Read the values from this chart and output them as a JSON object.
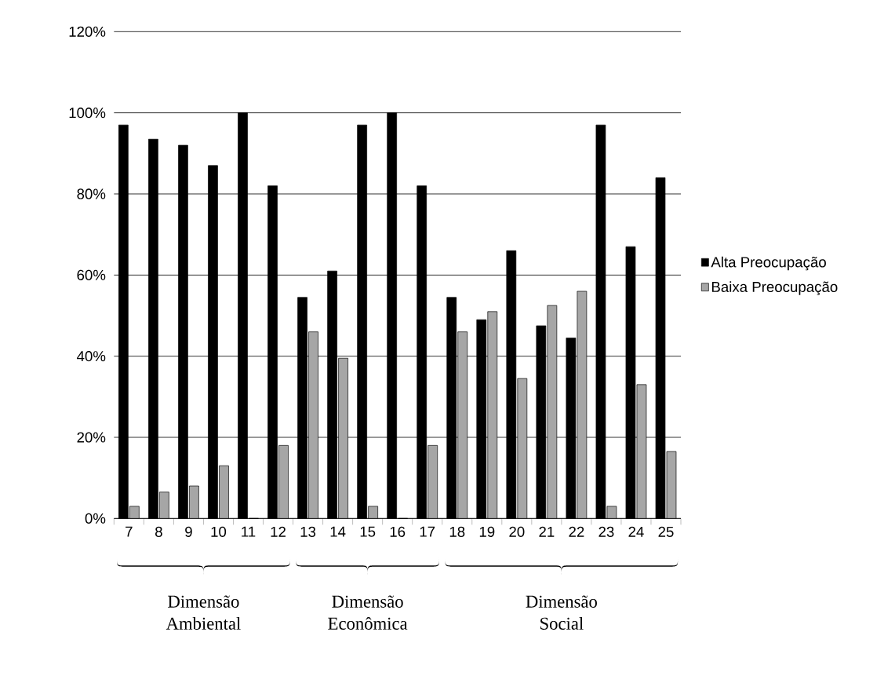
{
  "chart_data": {
    "type": "bar",
    "categories": [
      "7",
      "8",
      "9",
      "10",
      "11",
      "12",
      "13",
      "14",
      "15",
      "16",
      "17",
      "18",
      "19",
      "20",
      "21",
      "22",
      "23",
      "24",
      "25"
    ],
    "series": [
      {
        "name": "Alta Preocupação",
        "color": "#000000",
        "values": [
          97,
          93.5,
          92,
          87,
          100,
          82,
          54.5,
          61,
          97,
          100,
          82,
          54.5,
          49,
          66,
          47.5,
          44.5,
          97,
          67,
          84
        ]
      },
      {
        "name": "Baixa Preocupação",
        "color": "#a6a6a6",
        "values": [
          3,
          6.5,
          8,
          13,
          0,
          18,
          46,
          39.5,
          3,
          0,
          18,
          46,
          51,
          34.5,
          52.5,
          56,
          3,
          33,
          16.5
        ]
      }
    ],
    "ylim": [
      0,
      120
    ],
    "yticks": [
      {
        "value": 0,
        "label": "0%"
      },
      {
        "value": 20,
        "label": "20%"
      },
      {
        "value": 40,
        "label": "40%"
      },
      {
        "value": 60,
        "label": "60%"
      },
      {
        "value": 80,
        "label": "80%"
      },
      {
        "value": 100,
        "label": "100%"
      },
      {
        "value": 120,
        "label": "120%"
      }
    ],
    "grid": "y",
    "legend": "right",
    "annotations": [
      "Dimensão Ambiental",
      "Dimensão Econômica",
      "Dimensão Social"
    ]
  }
}
